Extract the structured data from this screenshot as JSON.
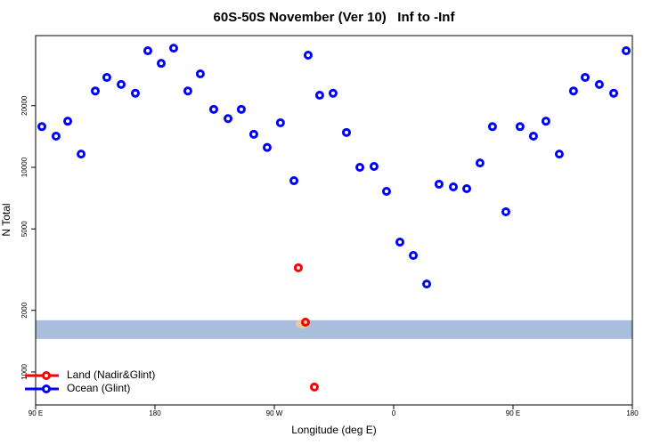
{
  "chart_data": {
    "type": "scatter",
    "title": "60S-50S November (Ver 10)   Inf to -Inf",
    "xlabel": "Longitude (deg E)",
    "ylabel": "N Total",
    "xlim": [
      90,
      540
    ],
    "xticks": [
      {
        "value": 90,
        "label": "90 E"
      },
      180,
      {
        "value": 270,
        "label": "90 W"
      },
      {
        "value": 360,
        "label": "0"
      },
      {
        "value": 450,
        "label": "90 E"
      },
      {
        "value": 540,
        "label": "180"
      }
    ],
    "ylim": [
      690,
      44000
    ],
    "log_y": true,
    "yticks": [
      1000,
      2000,
      5000,
      10000,
      20000
    ],
    "band": [
      1450,
      1790
    ],
    "band_color": "#a8bedc",
    "grid": false,
    "legend": "bottom-left",
    "series": [
      {
        "name": "Land (Nadir&Glint)",
        "color": "#ff0000",
        "x": [
          288.1,
          293.5,
          300.2
        ],
        "values": [
          3230,
          1750,
          844
        ]
      },
      {
        "name": "Ocean (Glint)",
        "color": "#0000ff",
        "x": [
          94.7,
          105.4,
          114.2,
          124.3,
          135,
          143.7,
          154.5,
          165.2,
          174.6,
          184.7,
          194.1,
          204.8,
          214.2,
          224.3,
          235.1,
          245.1,
          254.5,
          264.6,
          274.6,
          284.8,
          295.5,
          304.2,
          314.3,
          324.4,
          334.5,
          345.2,
          354.6,
          364.7,
          374.8,
          384.9,
          394.2,
          405,
          415.1,
          425.1,
          434.5,
          444.6,
          455.3,
          465.4,
          474.8,
          484.9,
          495.6,
          504.4,
          515.1,
          525.9,
          535.3
        ],
        "values": [
          15800,
          14200,
          16800,
          11600,
          23600,
          27500,
          25400,
          23000,
          37100,
          32200,
          38200,
          23600,
          28600,
          19200,
          17300,
          19200,
          14500,
          12500,
          16500,
          8600,
          35300,
          22500,
          23000,
          14800,
          10000,
          10100,
          7630,
          4310,
          3710,
          2690,
          8270,
          8020,
          7860,
          10500,
          15800,
          6060,
          15800,
          14200,
          16800,
          11600,
          23600,
          27500,
          25400,
          23000,
          37100
        ]
      }
    ]
  }
}
